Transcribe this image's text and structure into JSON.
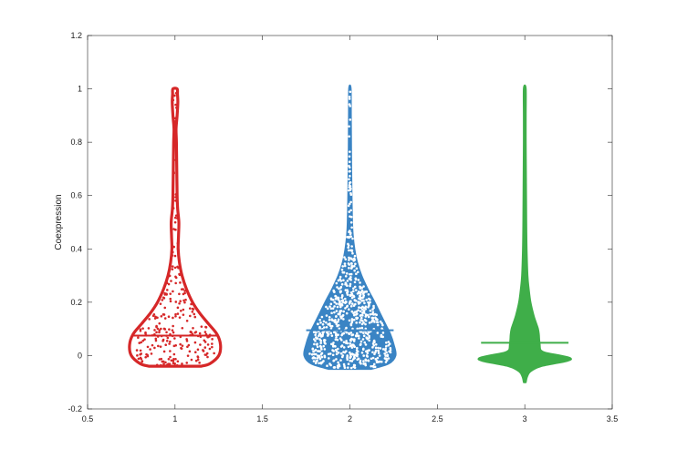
{
  "chart_data": {
    "type": "violin",
    "title": "",
    "xlabel": "",
    "ylabel": "Coexpression",
    "xlim": [
      0.5,
      3.5
    ],
    "ylim": [
      -0.2,
      1.2
    ],
    "xticks": [
      "0.5",
      "1",
      "1.5",
      "2",
      "2.5",
      "3",
      "3.5"
    ],
    "yticks": [
      "-0.2",
      "0",
      "0.2",
      "0.4",
      "0.6",
      "0.8",
      "1",
      "1.2"
    ],
    "grid": false,
    "series": [
      {
        "x": 1,
        "color": "#d62728",
        "style": "outline",
        "show_points": true,
        "point_count": 260,
        "mean": 0.075,
        "min": -0.04,
        "max": 1.0,
        "profile": [
          [
            -0.04,
            0.15
          ],
          [
            -0.03,
            0.2
          ],
          [
            0.0,
            0.25
          ],
          [
            0.04,
            0.26
          ],
          [
            0.08,
            0.24
          ],
          [
            0.12,
            0.19
          ],
          [
            0.16,
            0.14
          ],
          [
            0.2,
            0.1
          ],
          [
            0.25,
            0.065
          ],
          [
            0.3,
            0.04
          ],
          [
            0.35,
            0.025
          ],
          [
            0.4,
            0.018
          ],
          [
            0.45,
            0.02
          ],
          [
            0.5,
            0.022
          ],
          [
            0.55,
            0.015
          ],
          [
            0.6,
            0.012
          ],
          [
            0.7,
            0.01
          ],
          [
            0.8,
            0.008
          ],
          [
            0.85,
            0.006
          ],
          [
            0.9,
            0.012
          ],
          [
            0.95,
            0.016
          ],
          [
            0.98,
            0.014
          ],
          [
            1.0,
            0.012
          ]
        ]
      },
      {
        "x": 2,
        "color": "#3a84c4",
        "style": "filled",
        "show_points": true,
        "point_count": 700,
        "mean": 0.095,
        "min": -0.05,
        "max": 1.0,
        "profile": [
          [
            -0.05,
            0.12
          ],
          [
            -0.03,
            0.22
          ],
          [
            0.0,
            0.26
          ],
          [
            0.04,
            0.25
          ],
          [
            0.08,
            0.23
          ],
          [
            0.12,
            0.2
          ],
          [
            0.16,
            0.17
          ],
          [
            0.2,
            0.14
          ],
          [
            0.25,
            0.1
          ],
          [
            0.3,
            0.065
          ],
          [
            0.35,
            0.04
          ],
          [
            0.4,
            0.025
          ],
          [
            0.45,
            0.016
          ],
          [
            0.5,
            0.012
          ],
          [
            0.6,
            0.009
          ],
          [
            0.7,
            0.007
          ],
          [
            0.8,
            0.006
          ],
          [
            0.9,
            0.005
          ],
          [
            1.0,
            0.004
          ]
        ]
      },
      {
        "x": 3,
        "color": "#3fae49",
        "style": "filled",
        "show_points": false,
        "mean": 0.048,
        "min": -0.1,
        "max": 1.0,
        "profile": [
          [
            -0.1,
            0.005
          ],
          [
            -0.08,
            0.012
          ],
          [
            -0.06,
            0.03
          ],
          [
            -0.04,
            0.09
          ],
          [
            -0.02,
            0.24
          ],
          [
            -0.01,
            0.26
          ],
          [
            0.0,
            0.2
          ],
          [
            0.01,
            0.12
          ],
          [
            0.02,
            0.09
          ],
          [
            0.04,
            0.085
          ],
          [
            0.06,
            0.082
          ],
          [
            0.08,
            0.08
          ],
          [
            0.1,
            0.075
          ],
          [
            0.12,
            0.065
          ],
          [
            0.15,
            0.05
          ],
          [
            0.2,
            0.032
          ],
          [
            0.25,
            0.022
          ],
          [
            0.3,
            0.015
          ],
          [
            0.4,
            0.01
          ],
          [
            0.5,
            0.008
          ],
          [
            0.6,
            0.007
          ],
          [
            0.7,
            0.006
          ],
          [
            0.8,
            0.005
          ],
          [
            0.9,
            0.005
          ],
          [
            1.0,
            0.005
          ]
        ]
      }
    ]
  }
}
